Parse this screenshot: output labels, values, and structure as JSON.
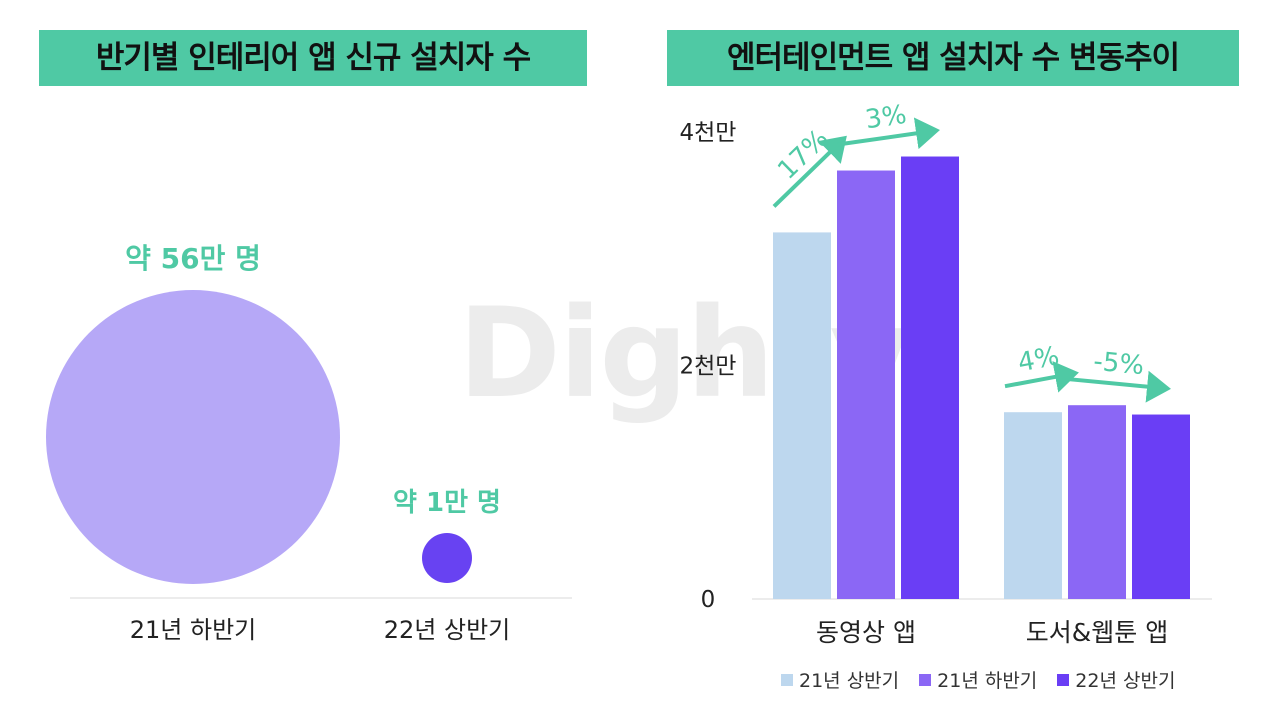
{
  "left_chart": {
    "title": "반기별 인테리어 앱 신규 설치자 수",
    "items": [
      {
        "period": "21년 하반기",
        "label": "약 56만 명",
        "value": 560000,
        "color": "#b6a8f7"
      },
      {
        "period": "22년 상반기",
        "label": "약 1만 명",
        "value": 10000,
        "color": "#6842f2"
      }
    ],
    "label_color": "#4fc9a4"
  },
  "right_chart": {
    "title": "엔터테인먼트 앱 설치자 수 변동추이",
    "y_ticks": [
      {
        "value": 0,
        "label": "0"
      },
      {
        "value": 20000000,
        "label": "2천만"
      },
      {
        "value": 40000000,
        "label": "4천만"
      }
    ],
    "series": [
      {
        "name": "21년 상반기",
        "color": "#bdd7ee"
      },
      {
        "name": "21년 하반기",
        "color": "#8b67f5"
      },
      {
        "name": "22년 상반기",
        "color": "#6a3ef5"
      }
    ],
    "arrow_color": "#4fc9a4"
  },
  "watermark": "Dighty",
  "chart_data": [
    {
      "type": "bubble",
      "title": "반기별 인테리어 앱 신규 설치자 수",
      "categories": [
        "21년 하반기",
        "22년 상반기"
      ],
      "values": [
        560000,
        10000
      ],
      "data_labels": [
        "약 56만 명",
        "약 1만 명"
      ]
    },
    {
      "type": "bar",
      "title": "엔터테인먼트 앱 설치자 수 변동추이",
      "categories": [
        "동영상 앱",
        "도서&웹툰 앱"
      ],
      "series": [
        {
          "name": "21년 상반기",
          "values": [
            31400000,
            16000000
          ]
        },
        {
          "name": "21년 하반기",
          "values": [
            36700000,
            16600000
          ]
        },
        {
          "name": "22년 상반기",
          "values": [
            37900000,
            15800000
          ]
        }
      ],
      "ylim": [
        0,
        40000000
      ],
      "y_tick_labels": [
        "0",
        "2천만",
        "4천만"
      ],
      "annotations": [
        {
          "category": "동영상 앱",
          "from": "21년 상반기",
          "to": "21년 하반기",
          "label": "17%"
        },
        {
          "category": "동영상 앱",
          "from": "21년 하반기",
          "to": "22년 상반기",
          "label": "3%"
        },
        {
          "category": "도서&웹툰 앱",
          "from": "21년 상반기",
          "to": "21년 하반기",
          "label": "4%"
        },
        {
          "category": "도서&웹툰 앱",
          "from": "21년 하반기",
          "to": "22년 상반기",
          "label": "-5%"
        }
      ],
      "legend": "bottom"
    }
  ]
}
